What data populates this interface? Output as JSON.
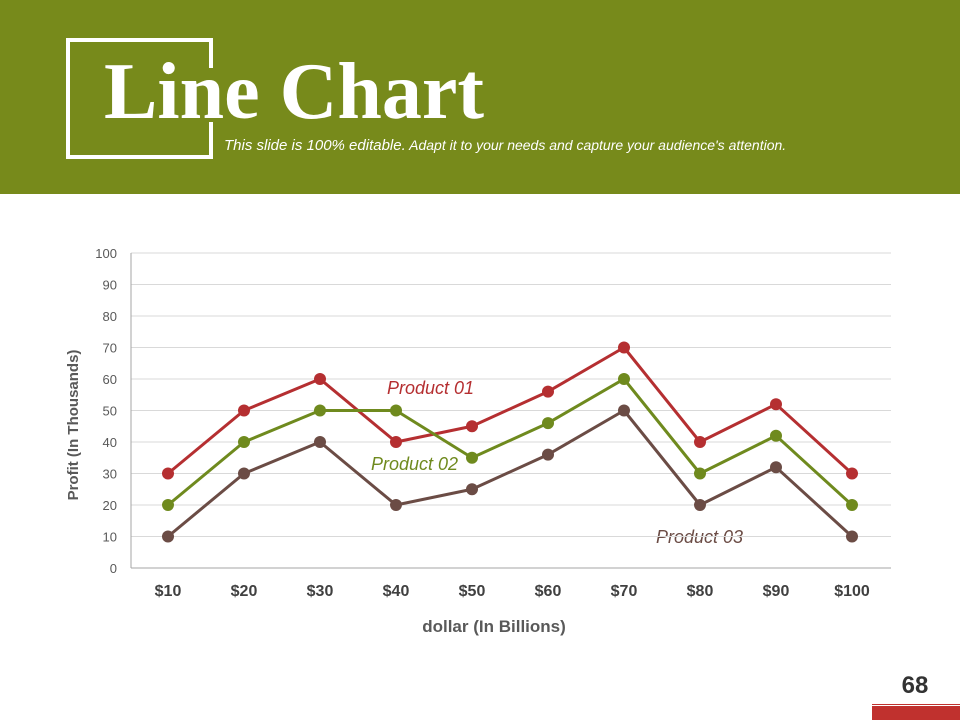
{
  "header": {
    "title": "Line Chart",
    "subtitle_strong": "This slide is 100% editable.",
    "subtitle_rest": " Adapt it to your needs and capture your audience's attention.",
    "bg_color": "#778a1b"
  },
  "page_number": "68",
  "chart_data": {
    "type": "line",
    "title": "",
    "xlabel": "dollar (In Billions)",
    "ylabel": "Profit  (In Thousands)",
    "categories": [
      "$10",
      "$20",
      "$30",
      "$40",
      "$50",
      "$60",
      "$70",
      "$80",
      "$90",
      "$100"
    ],
    "ylim": [
      0,
      100
    ],
    "yticks": [
      0,
      10,
      20,
      30,
      40,
      50,
      60,
      70,
      80,
      90,
      100
    ],
    "grid": true,
    "legend": "none",
    "series": [
      {
        "name": "Product 01",
        "color": "#b52f31",
        "values": [
          30,
          50,
          60,
          40,
          45,
          56,
          70,
          40,
          52,
          30
        ]
      },
      {
        "name": "Product 02",
        "color": "#6f8a1e",
        "values": [
          20,
          40,
          50,
          50,
          35,
          46,
          60,
          30,
          42,
          20
        ]
      },
      {
        "name": "Product 03",
        "color": "#6b4c45",
        "values": [
          10,
          30,
          40,
          20,
          25,
          36,
          50,
          20,
          32,
          10
        ]
      }
    ]
  }
}
